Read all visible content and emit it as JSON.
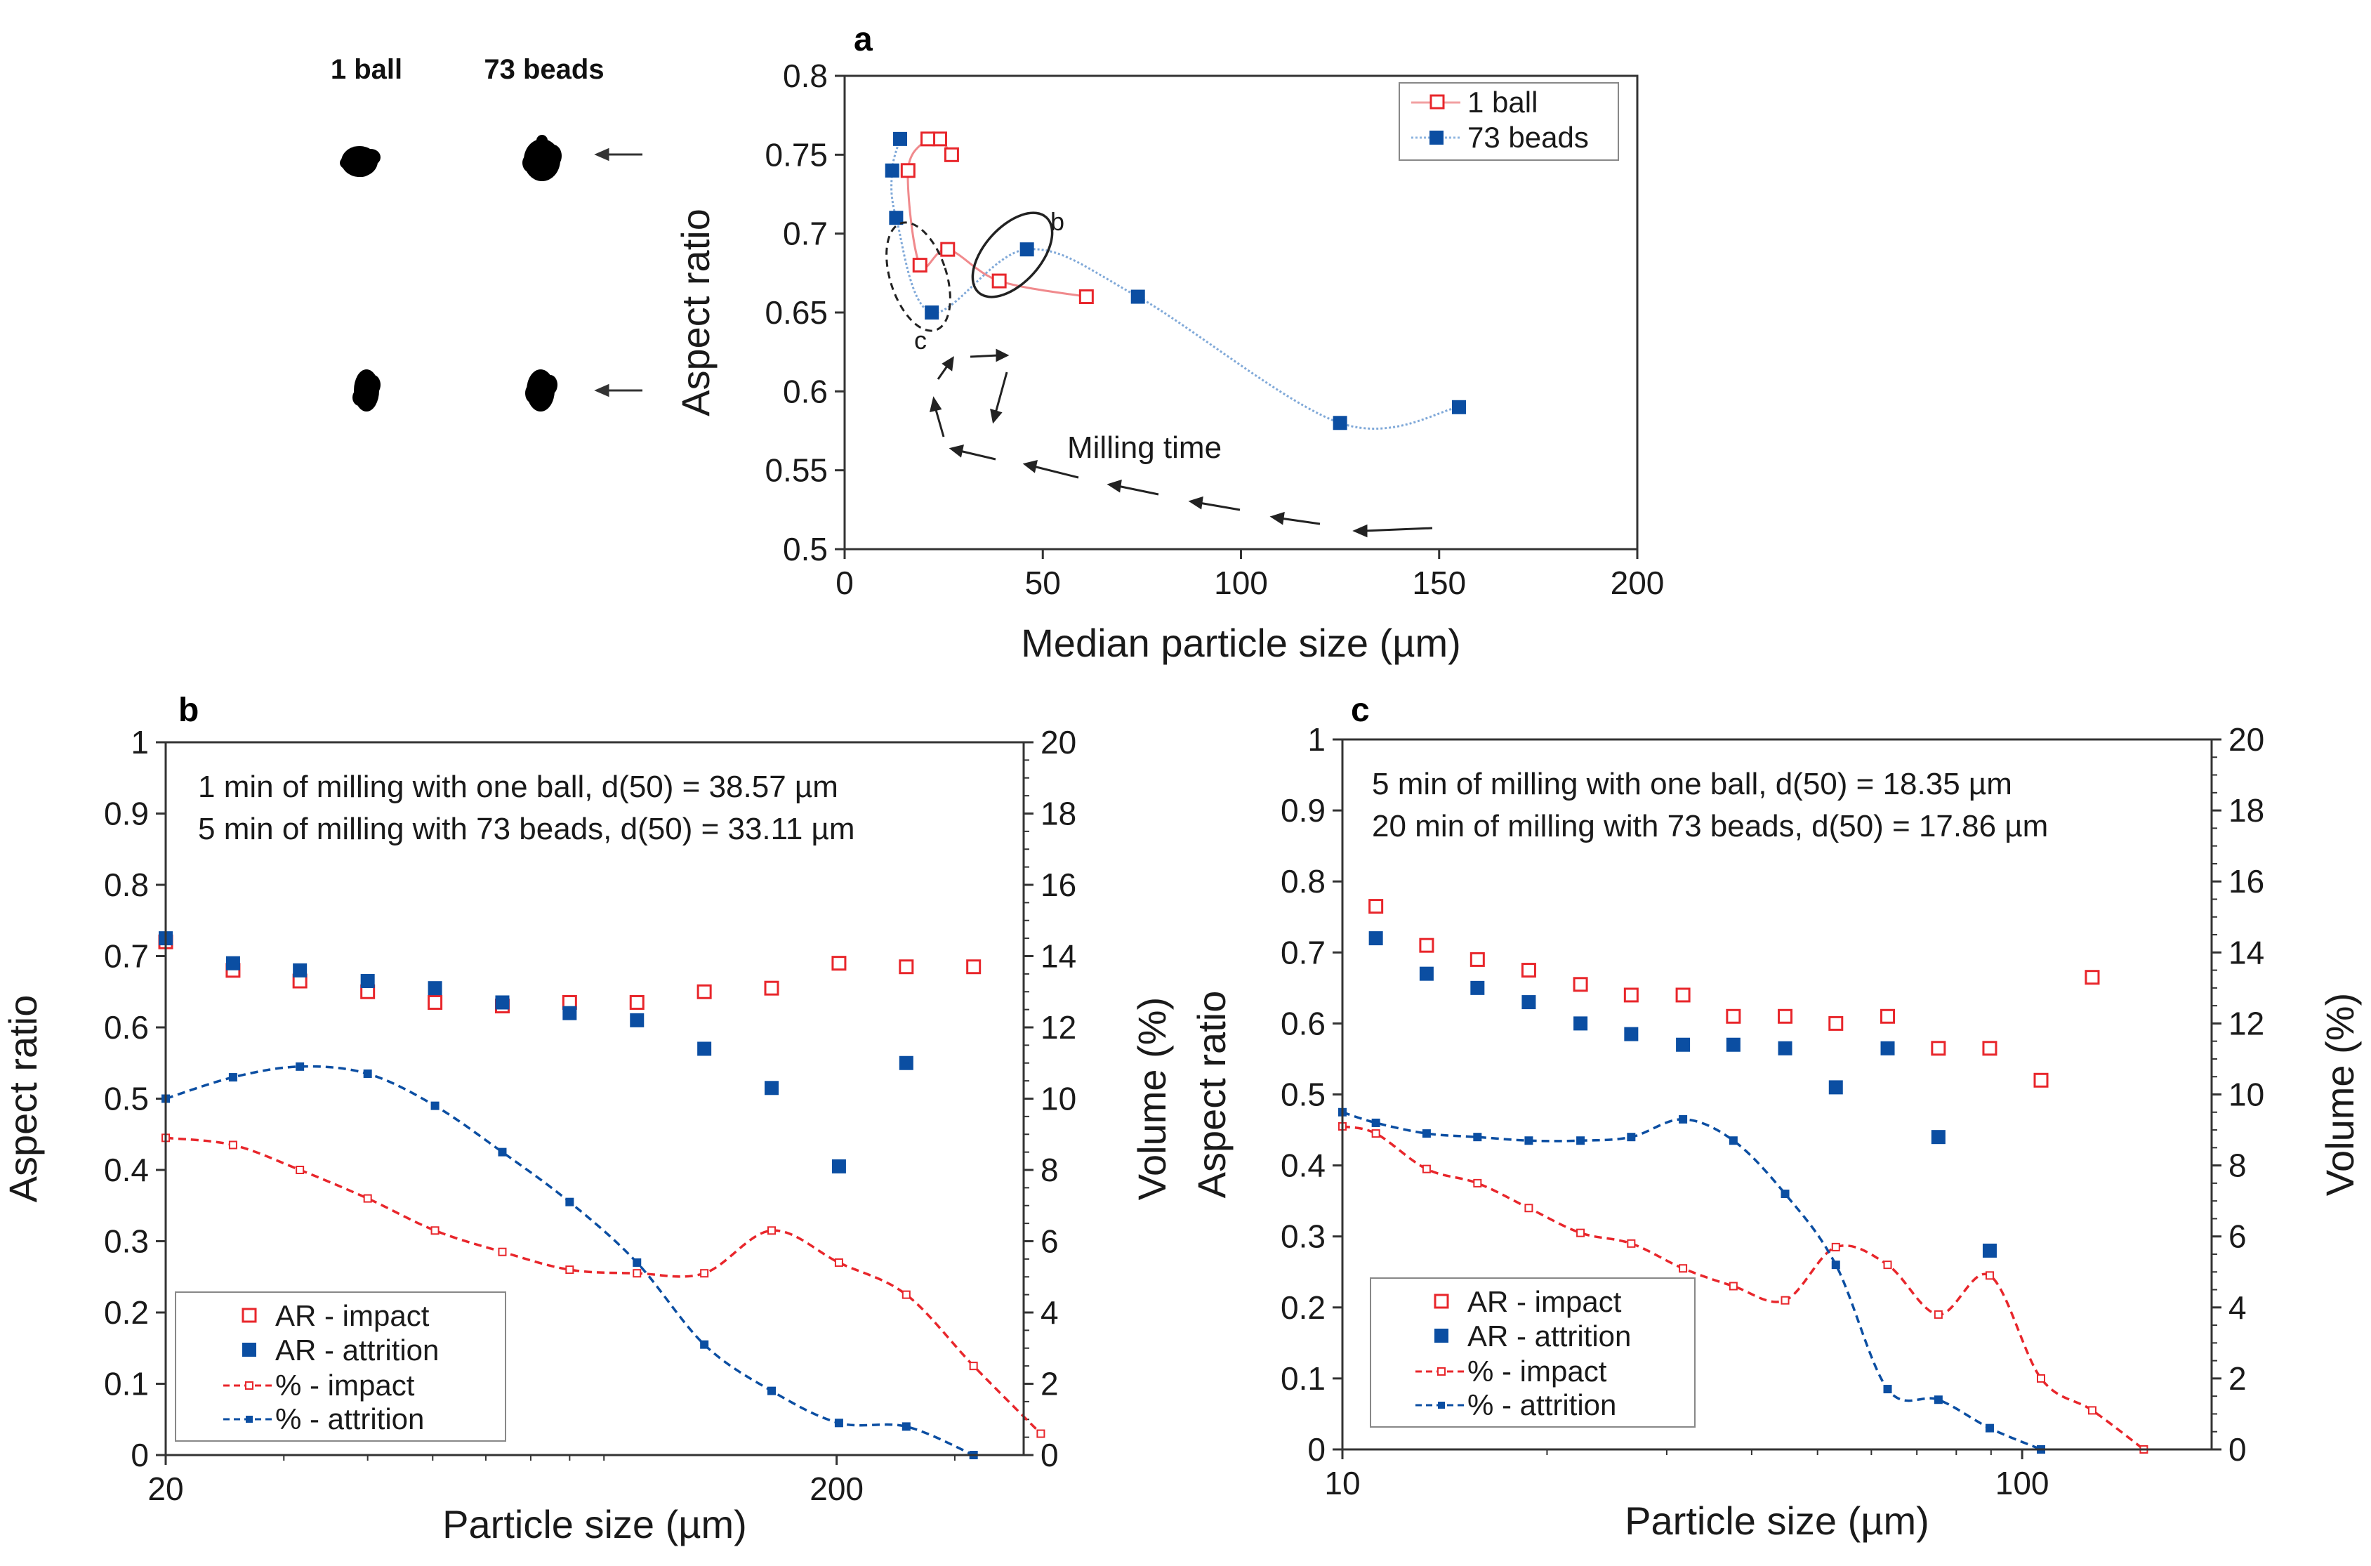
{
  "colors": {
    "impact": "#e8262b",
    "attrition": "#0b4ea2",
    "axis": "#333333",
    "text": "#1a1a1a"
  },
  "thumbnails": {
    "labels": [
      "1 ball",
      "73 beads"
    ]
  },
  "chart_data": [
    {
      "id": "a",
      "panel_label": "a",
      "type": "line",
      "xlabel": "Median particle size (µm)",
      "ylabel": "Aspect ratio",
      "xlim": [
        0,
        200
      ],
      "ylim": [
        0.5,
        0.8
      ],
      "xticks": [
        0,
        50,
        100,
        150,
        200
      ],
      "yticks": [
        0.5,
        0.55,
        0.6,
        0.65,
        0.7,
        0.75,
        0.8
      ],
      "x_tick_labels": [
        "0",
        "50",
        "100",
        "150",
        "200"
      ],
      "y_tick_labels": [
        "0.5",
        "0.55",
        "0.6",
        "0.65",
        "0.7",
        "0.75",
        "0.8"
      ],
      "legend": [
        "1 ball",
        "73 beads"
      ],
      "series": [
        {
          "name": "1 ball",
          "marker": "open-square",
          "color": "impact",
          "x": [
            27,
            24,
            21,
            16,
            19,
            26,
            39,
            61
          ],
          "y": [
            0.75,
            0.76,
            0.76,
            0.74,
            0.68,
            0.69,
            0.67,
            0.66
          ]
        },
        {
          "name": "73 beads",
          "marker": "filled-square",
          "color": "attrition",
          "x": [
            14,
            12,
            13,
            22,
            46,
            74,
            125,
            155
          ],
          "y": [
            0.76,
            0.74,
            0.71,
            0.65,
            0.69,
            0.66,
            0.58,
            0.59
          ]
        }
      ],
      "annotations": {
        "ellipse_b_label": "b",
        "ellipse_c_label": "c",
        "arrow_label": "Milling time"
      }
    },
    {
      "id": "b",
      "panel_label": "b",
      "type": "scatter",
      "xlabel": "Particle size (µm)",
      "ylabel": "Aspect ratio",
      "y2label": "Volume (%)",
      "x_scale": "log",
      "xlim": [
        20,
        380
      ],
      "ylim": [
        0,
        1
      ],
      "y2lim": [
        0,
        20
      ],
      "xticks": [
        20,
        200
      ],
      "x_tick_labels": [
        "20",
        "200"
      ],
      "yticks": [
        0,
        0.1,
        0.2,
        0.3,
        0.4,
        0.5,
        0.6,
        0.7,
        0.8,
        0.9,
        1
      ],
      "y_tick_labels": [
        "0",
        "0.1",
        "0.2",
        "0.3",
        "0.4",
        "0.5",
        "0.6",
        "0.7",
        "0.8",
        "0.9",
        "1"
      ],
      "y2ticks": [
        0,
        2,
        4,
        6,
        8,
        10,
        12,
        14,
        16,
        18,
        20
      ],
      "y2_tick_labels": [
        "0",
        "2",
        "4",
        "6",
        "8",
        "10",
        "12",
        "14",
        "16",
        "18",
        "20"
      ],
      "text_lines": [
        "1 min of milling with one ball, d(50) = 38.57 µm",
        "5 min of milling with 73 beads, d(50) = 33.11 µm"
      ],
      "legend": [
        "AR - impact",
        "AR - attrition",
        "% - impact",
        "% - attrition"
      ],
      "series": [
        {
          "name": "AR - impact",
          "axis": "left",
          "marker": "open-square",
          "color": "impact",
          "x": [
            20,
            25.2,
            31.7,
            40,
            50.4,
            63.5,
            80,
            100.8,
            127,
            160,
            201.6,
            254,
            320
          ],
          "y": [
            0.72,
            0.68,
            0.665,
            0.65,
            0.635,
            0.63,
            0.635,
            0.635,
            0.65,
            0.655,
            0.69,
            0.685,
            0.685
          ]
        },
        {
          "name": "AR - attrition",
          "axis": "left",
          "marker": "filled-square",
          "color": "attrition",
          "x": [
            20,
            25.2,
            31.7,
            40,
            50.4,
            63.5,
            80,
            100.8,
            127,
            160,
            201.6,
            254
          ],
          "y": [
            0.725,
            0.69,
            0.68,
            0.665,
            0.655,
            0.635,
            0.62,
            0.61,
            0.57,
            0.515,
            0.405,
            0.55
          ]
        },
        {
          "name": "% - impact",
          "axis": "right",
          "line": "dashed",
          "color": "impact",
          "x": [
            20,
            25.2,
            31.7,
            40,
            50.4,
            63.5,
            80,
            100.8,
            127,
            160,
            201.6,
            254,
            320,
            403
          ],
          "y": [
            8.9,
            8.7,
            8.0,
            7.2,
            6.3,
            5.7,
            5.2,
            5.1,
            5.1,
            6.3,
            5.4,
            4.5,
            2.5,
            0.6
          ]
        },
        {
          "name": "% - attrition",
          "axis": "right",
          "line": "dashed",
          "color": "attrition",
          "x": [
            20,
            25.2,
            31.7,
            40,
            50.4,
            63.5,
            80,
            100.8,
            127,
            160,
            201.6,
            254,
            320
          ],
          "y": [
            10.0,
            10.6,
            10.9,
            10.7,
            9.8,
            8.5,
            7.1,
            5.4,
            3.1,
            1.8,
            0.9,
            0.8,
            0
          ]
        }
      ]
    },
    {
      "id": "c",
      "panel_label": "c",
      "type": "scatter",
      "xlabel": "Particle size (µm)",
      "ylabel": "Aspect ratio",
      "y2label": "Volume (%)",
      "x_scale": "log",
      "xlim": [
        10,
        190
      ],
      "ylim": [
        0,
        1
      ],
      "y2lim": [
        0,
        20
      ],
      "xticks": [
        10,
        100
      ],
      "x_tick_labels": [
        "10",
        "100"
      ],
      "yticks": [
        0,
        0.1,
        0.2,
        0.3,
        0.4,
        0.5,
        0.6,
        0.7,
        0.8,
        0.9,
        1
      ],
      "y_tick_labels": [
        "0",
        "0.1",
        "0.2",
        "0.3",
        "0.4",
        "0.5",
        "0.6",
        "0.7",
        "0.8",
        "0.9",
        "1"
      ],
      "y2ticks": [
        0,
        2,
        4,
        6,
        8,
        10,
        12,
        14,
        16,
        18,
        20
      ],
      "y2_tick_labels": [
        "0",
        "2",
        "4",
        "6",
        "8",
        "10",
        "12",
        "14",
        "16",
        "18",
        "20"
      ],
      "text_lines": [
        "5 min of milling with one ball, d(50) = 18.35 µm",
        "20 min of milling with 73 beads, d(50) = 17.86 µm"
      ],
      "legend": [
        "AR - impact",
        "AR - attrition",
        "% - impact",
        "% - attrition"
      ],
      "series": [
        {
          "name": "AR - impact",
          "axis": "left",
          "marker": "open-square",
          "color": "impact",
          "x": [
            11.2,
            13.3,
            15.8,
            18.8,
            22.4,
            26.6,
            31.7,
            37.6,
            44.8,
            53.2,
            63.4,
            75.3,
            89.6,
            106.6,
            126.8
          ],
          "y": [
            0.765,
            0.71,
            0.69,
            0.675,
            0.655,
            0.64,
            0.64,
            0.61,
            0.61,
            0.6,
            0.61,
            0.565,
            0.565,
            0.52,
            0.665
          ]
        },
        {
          "name": "AR - attrition",
          "axis": "left",
          "marker": "filled-square",
          "color": "attrition",
          "x": [
            11.2,
            13.3,
            15.8,
            18.8,
            22.4,
            26.6,
            31.7,
            37.6,
            44.8,
            53.2,
            63.4,
            75.3,
            89.6
          ],
          "y": [
            0.72,
            0.67,
            0.65,
            0.63,
            0.6,
            0.585,
            0.57,
            0.57,
            0.565,
            0.51,
            0.565,
            0.44,
            0.28
          ]
        },
        {
          "name": "% - impact",
          "axis": "right",
          "line": "dashed",
          "color": "impact",
          "x": [
            10,
            11.2,
            13.3,
            15.8,
            18.8,
            22.4,
            26.6,
            31.7,
            37.6,
            44.8,
            53.2,
            63.4,
            75.3,
            89.6,
            106.6,
            126.8,
            151
          ],
          "y": [
            9.1,
            8.9,
            7.9,
            7.5,
            6.8,
            6.1,
            5.8,
            5.1,
            4.6,
            4.2,
            5.7,
            5.2,
            3.8,
            4.9,
            2.0,
            1.1,
            0
          ]
        },
        {
          "name": "% - attrition",
          "axis": "right",
          "line": "dashed",
          "color": "attrition",
          "x": [
            10,
            11.2,
            13.3,
            15.8,
            18.8,
            22.4,
            26.6,
            31.7,
            37.6,
            44.8,
            53.2,
            63.4,
            75.3,
            89.6,
            106.6
          ],
          "y": [
            9.5,
            9.2,
            8.9,
            8.8,
            8.7,
            8.7,
            8.8,
            9.3,
            8.7,
            7.2,
            5.2,
            1.7,
            1.4,
            0.6,
            0
          ]
        }
      ]
    }
  ]
}
